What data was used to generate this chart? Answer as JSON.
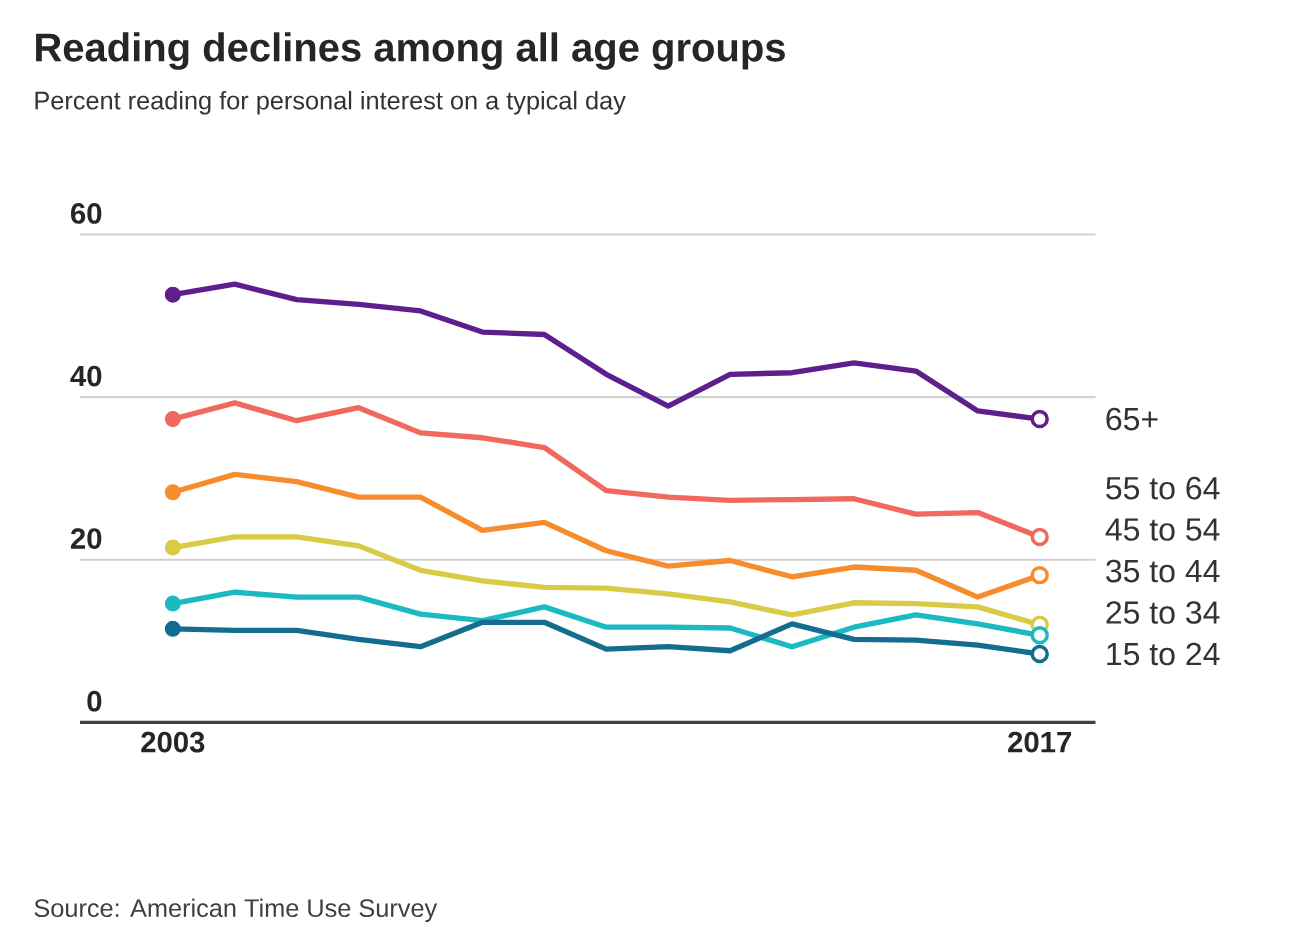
{
  "chart_data": {
    "type": "line",
    "title": "Reading declines among all age groups",
    "subtitle": "Percent reading for personal interest on a typical day",
    "x": [
      2003,
      2004,
      2005,
      2006,
      2007,
      2008,
      2009,
      2010,
      2011,
      2012,
      2013,
      2014,
      2015,
      2016,
      2017
    ],
    "series": [
      {
        "name": "65+",
        "color": "#5e1e8c",
        "values": [
          52.6,
          53.9,
          52.0,
          51.4,
          50.6,
          48.0,
          47.7,
          42.8,
          38.9,
          42.8,
          43.0,
          44.2,
          43.2,
          38.3,
          37.3
        ]
      },
      {
        "name": "55 to 64",
        "color": "#f0685e",
        "values": [
          37.3,
          39.3,
          37.1,
          38.7,
          35.6,
          35.0,
          33.8,
          28.5,
          27.7,
          27.3,
          27.4,
          27.5,
          25.6,
          25.8,
          22.8
        ]
      },
      {
        "name": "45 to 54",
        "color": "#f78c2c",
        "values": [
          28.3,
          30.5,
          29.6,
          27.7,
          27.7,
          23.6,
          24.6,
          21.1,
          19.2,
          19.9,
          17.9,
          19.1,
          18.7,
          15.4,
          18.1
        ]
      },
      {
        "name": "35 to 44",
        "color": "#d9cb45",
        "values": [
          21.5,
          22.8,
          22.8,
          21.7,
          18.7,
          17.4,
          16.6,
          16.5,
          15.8,
          14.8,
          13.2,
          14.7,
          14.6,
          14.2,
          12.0
        ]
      },
      {
        "name": "25 to 34",
        "color": "#1bb9c2",
        "values": [
          14.6,
          16.0,
          15.4,
          15.4,
          13.3,
          12.5,
          14.2,
          11.7,
          11.7,
          11.6,
          9.3,
          11.7,
          13.2,
          12.1,
          10.7
        ]
      },
      {
        "name": "15 to 24",
        "color": "#146d8f",
        "values": [
          11.5,
          11.3,
          11.3,
          10.2,
          9.3,
          12.3,
          12.3,
          9.0,
          9.3,
          8.8,
          12.1,
          10.2,
          10.1,
          9.5,
          8.4
        ]
      }
    ],
    "xlim": [
      2001.5,
      2017.9
    ],
    "xticks": [
      2003,
      2017
    ],
    "ylim": [
      0,
      60
    ],
    "yticks": [
      0,
      20,
      40,
      60
    ],
    "grid": "y",
    "legend": false,
    "line_style": "solid",
    "annotations": [
      "Source: American Time Use Survey"
    ]
  }
}
